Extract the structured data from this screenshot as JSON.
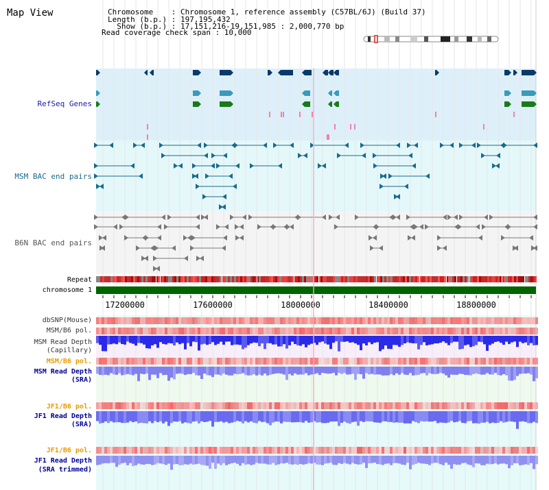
{
  "page_title": "Map View",
  "info": {
    "line1": "Chromosome    : Chromosome 1, reference assembly (C57BL/6J) (Build 37)",
    "line2": "Length (b.p.) : 197,195,432",
    "line3": "  Show (b.p.) : 17,151,216-19,151,985 : 2,000,770 bp",
    "line4": "Read coverage check span : 10,000"
  },
  "tracks": {
    "refseq": "RefSeq Genes",
    "msm_bac": "MSM BAC end pairs",
    "b6n_bac": "B6N BAC end pairs",
    "repeat": "Repeat",
    "chromosome": "chromosome 1",
    "dbsnp": "dbSNP(Mouse)",
    "msm_b6_pol_1": "MSM/B6 pol.",
    "msm_depth_cap_1": "MSM Read Depth",
    "msm_depth_cap_2": "(Capillary)",
    "msm_b6_pol_2": "MSM/B6 pol.",
    "msm_depth_sra_1": "MSM Read Depth",
    "msm_depth_sra_2": "(SRA)",
    "jf1_b6_pol_1": "JF1/B6 pol.",
    "jf1_depth_sra_1": "JF1 Read Depth",
    "jf1_depth_sra_2": "(SRA)",
    "jf1_b6_pol_2": "JF1/B6 pol.",
    "jf1_depth_trim_1": "JF1 Read Depth",
    "jf1_depth_trim_2": "(SRA trimmed)"
  },
  "axis": {
    "ticks": [
      "17200000",
      "17600000",
      "18000000",
      "18400000",
      "18800000"
    ]
  },
  "colors": {
    "refseq_bg": "#ddf0fa",
    "msm_bg": "#e4f8fa",
    "b6n_bg": "#f4f4f4",
    "refseq_label": "#1a1aa8",
    "msm_label": "#1a6a8a",
    "b6n_label": "#555555",
    "pol_orange": "#e89a00",
    "depth_blue": "#000099",
    "chromosome_green": "#006400",
    "gene_navy": "#0a3a6a",
    "gene_teal": "#3a9aba",
    "gene_green": "#1a7a1a",
    "pink_feature": "#f080b0"
  }
}
